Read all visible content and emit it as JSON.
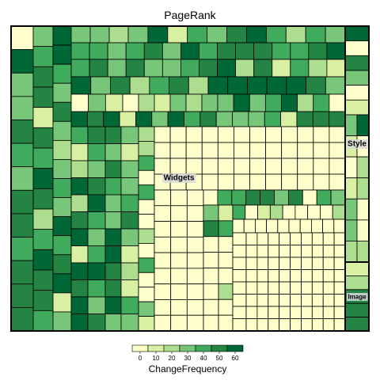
{
  "chart_data": {
    "type": "treemap",
    "title": "PageRank",
    "groups": [
      {
        "name": "Widgets",
        "share": 0.914
      },
      {
        "name": "Style",
        "share": 0.062
      },
      {
        "name": "Image",
        "share": 0.024
      }
    ],
    "color_scale": {
      "title": "ChangeFrequency",
      "ticks": [
        "0",
        "10",
        "20",
        "30",
        "40",
        "50",
        "60"
      ],
      "range": [
        -5,
        65
      ],
      "colors": [
        "#ffffcc",
        "#d9f0a3",
        "#addd8e",
        "#78c679",
        "#41ab5d",
        "#238443",
        "#006837"
      ]
    },
    "layout_note": ""
  }
}
